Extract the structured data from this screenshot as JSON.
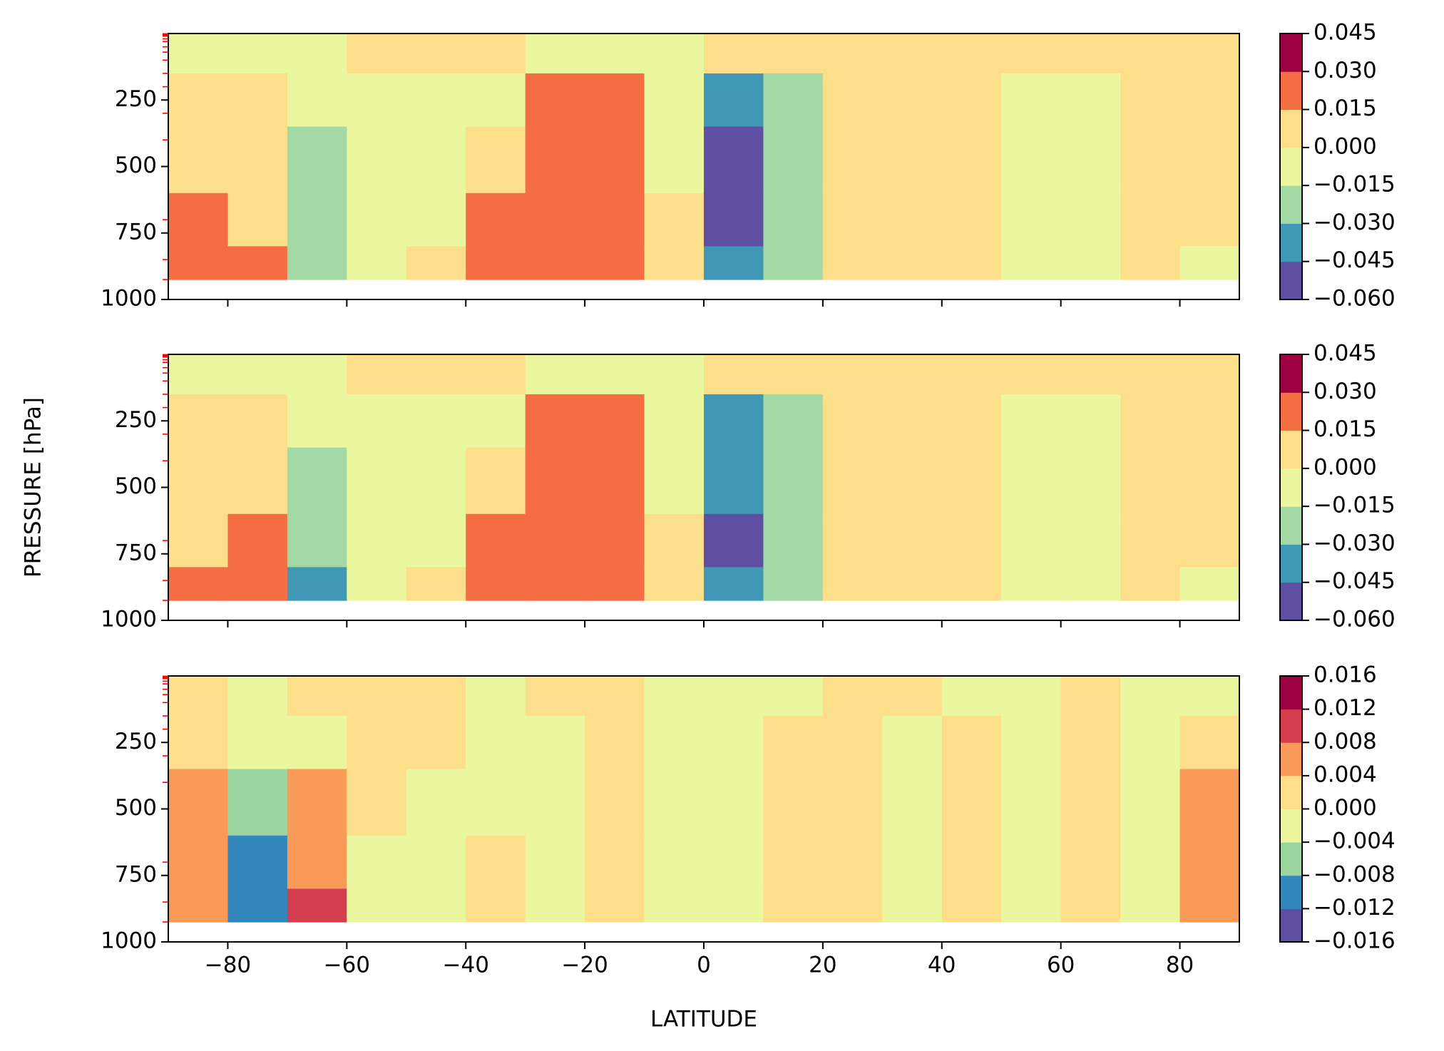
{
  "chart_data": [
    {
      "type": "contour",
      "xlim": [
        -90,
        90
      ],
      "ylim": [
        1000,
        0
      ],
      "xticks": [
        -80,
        -60,
        -40,
        -20,
        0,
        20,
        40,
        60,
        80
      ],
      "yticks": [
        250,
        500,
        750,
        1000
      ],
      "minor_yticks": [
        1,
        2,
        3,
        5,
        7,
        10,
        20,
        30,
        50,
        70,
        100,
        150,
        200,
        300,
        400,
        700,
        850,
        925
      ],
      "minor_tick_color": "red",
      "levels": [
        {
          "value": -0.06,
          "label": "−0.060"
        },
        {
          "value": -0.045,
          "label": "−0.045"
        },
        {
          "value": -0.03,
          "label": "−0.030"
        },
        {
          "value": -0.015,
          "label": "−0.015"
        },
        {
          "value": 0,
          "label": "0.000"
        },
        {
          "value": 0.015,
          "label": "0.015"
        },
        {
          "value": 0.03,
          "label": "0.030"
        },
        {
          "value": 0.045,
          "label": "0.045"
        }
      ],
      "colors": [
        "#5e4fa2",
        "#4198b6",
        "#a2d9a4",
        "#eaf79e",
        "#fddf8b",
        "#f46d43",
        "#9e0142"
      ],
      "x_edges": [
        -90,
        -80,
        -70,
        -60,
        -50,
        -40,
        -30,
        -20,
        -10,
        0,
        10,
        20,
        30,
        40,
        50,
        60,
        70,
        80,
        90
      ],
      "y_edges": [
        0,
        150,
        350,
        600,
        800,
        925
      ],
      "z": [
        [
          -0.0075,
          -0.0075,
          -0.0075,
          0.0075,
          0.0075,
          0.0075,
          -0.0075,
          -0.0075,
          -0.0075,
          0.0075,
          0.0075,
          0.0075,
          0.0075,
          0.0075,
          0.0075,
          0.0075,
          0.0075,
          0.0075
        ],
        [
          0.0075,
          0.0075,
          -0.0075,
          -0.0075,
          -0.0075,
          -0.0075,
          0.0225,
          0.0225,
          -0.0075,
          -0.0375,
          -0.0225,
          0.0075,
          0.0075,
          0.0075,
          -0.0075,
          -0.0075,
          0.0075,
          0.0075
        ],
        [
          0.0075,
          0.0075,
          -0.0225,
          -0.0075,
          -0.0075,
          0.0075,
          0.0225,
          0.0225,
          -0.0075,
          -0.0525,
          -0.0225,
          0.0075,
          0.0075,
          0.0075,
          -0.0075,
          -0.0075,
          0.0075,
          0.0075
        ],
        [
          0.0225,
          0.0075,
          -0.0225,
          -0.0075,
          -0.0075,
          0.0225,
          0.0225,
          0.0225,
          0.0075,
          -0.0525,
          -0.0225,
          0.0075,
          0.0075,
          0.0075,
          -0.0075,
          -0.0075,
          0.0075,
          0.0075
        ],
        [
          0.0225,
          0.0225,
          -0.0225,
          -0.0075,
          0.0075,
          0.0225,
          0.0225,
          0.0225,
          0.0075,
          -0.0375,
          -0.0225,
          0.0075,
          0.0075,
          0.0075,
          -0.0075,
          -0.0075,
          0.0075,
          -0.0075
        ]
      ]
    },
    {
      "type": "contour",
      "ylabel": "PRESSURE [hPa]",
      "xlim": [
        -90,
        90
      ],
      "ylim": [
        1000,
        0
      ],
      "xticks": [
        -80,
        -60,
        -40,
        -20,
        0,
        20,
        40,
        60,
        80
      ],
      "yticks": [
        250,
        500,
        750,
        1000
      ],
      "minor_yticks": [
        1,
        2,
        3,
        5,
        7,
        10,
        20,
        30,
        50,
        70,
        100,
        150,
        200,
        300,
        400,
        700,
        850,
        925
      ],
      "minor_tick_color": "red",
      "levels": [
        {
          "value": -0.06,
          "label": "−0.060"
        },
        {
          "value": -0.045,
          "label": "−0.045"
        },
        {
          "value": -0.03,
          "label": "−0.030"
        },
        {
          "value": -0.015,
          "label": "−0.015"
        },
        {
          "value": 0,
          "label": "0.000"
        },
        {
          "value": 0.015,
          "label": "0.015"
        },
        {
          "value": 0.03,
          "label": "0.030"
        },
        {
          "value": 0.045,
          "label": "0.045"
        }
      ],
      "colors": [
        "#5e4fa2",
        "#4198b6",
        "#a2d9a4",
        "#eaf79e",
        "#fddf8b",
        "#f46d43",
        "#9e0142"
      ],
      "x_edges": [
        -90,
        -80,
        -70,
        -60,
        -50,
        -40,
        -30,
        -20,
        -10,
        0,
        10,
        20,
        30,
        40,
        50,
        60,
        70,
        80,
        90
      ],
      "y_edges": [
        0,
        150,
        350,
        600,
        800,
        925
      ],
      "z": [
        [
          -0.0075,
          -0.0075,
          -0.0075,
          0.0075,
          0.0075,
          0.0075,
          -0.0075,
          -0.0075,
          -0.0075,
          0.0075,
          0.0075,
          0.0075,
          0.0075,
          0.0075,
          0.0075,
          0.0075,
          0.0075,
          0.0075
        ],
        [
          0.0075,
          0.0075,
          -0.0075,
          -0.0075,
          -0.0075,
          -0.0075,
          0.0225,
          0.0225,
          -0.0075,
          -0.0375,
          -0.0225,
          0.0075,
          0.0075,
          0.0075,
          -0.0075,
          -0.0075,
          0.0075,
          0.0075
        ],
        [
          0.0075,
          0.0075,
          -0.0225,
          -0.0075,
          -0.0075,
          0.0075,
          0.0225,
          0.0225,
          -0.0075,
          -0.0375,
          -0.0225,
          0.0075,
          0.0075,
          0.0075,
          -0.0075,
          -0.0075,
          0.0075,
          0.0075
        ],
        [
          0.0075,
          0.0225,
          -0.0225,
          -0.0075,
          -0.0075,
          0.0225,
          0.0225,
          0.0225,
          0.0075,
          -0.0525,
          -0.0225,
          0.0075,
          0.0075,
          0.0075,
          -0.0075,
          -0.0075,
          0.0075,
          0.0075
        ],
        [
          0.0225,
          0.0225,
          -0.0375,
          -0.0075,
          0.0075,
          0.0225,
          0.0225,
          0.0225,
          0.0075,
          -0.0375,
          -0.0225,
          0.0075,
          0.0075,
          0.0075,
          -0.0075,
          -0.0075,
          0.0075,
          -0.0075
        ]
      ]
    },
    {
      "type": "contour",
      "xlabel": "LATITUDE",
      "xlim": [
        -90,
        90
      ],
      "ylim": [
        1000,
        0
      ],
      "xticks": [
        {
          "value": -80,
          "label": "−80"
        },
        {
          "value": -60,
          "label": "−60"
        },
        {
          "value": -40,
          "label": "−40"
        },
        {
          "value": -20,
          "label": "−20"
        },
        0,
        20,
        40,
        60,
        80
      ],
      "yticks": [
        250,
        500,
        750,
        1000
      ],
      "minor_yticks": [
        1,
        2,
        3,
        5,
        7,
        10,
        20,
        30,
        50,
        70,
        100,
        150,
        200,
        300,
        400,
        700,
        850,
        925
      ],
      "minor_tick_color": "red",
      "levels": [
        {
          "value": -0.016,
          "label": "−0.016"
        },
        {
          "value": -0.012,
          "label": "−0.012"
        },
        {
          "value": -0.008,
          "label": "−0.008"
        },
        {
          "value": -0.004,
          "label": "−0.004"
        },
        {
          "value": 0,
          "label": "0.000"
        },
        {
          "value": 0.004,
          "label": "0.004"
        },
        {
          "value": 0.008,
          "label": "0.008"
        },
        {
          "value": 0.012,
          "label": "0.012"
        },
        {
          "value": 0.016,
          "label": "0.016"
        }
      ],
      "colors": [
        "#5e4fa2",
        "#3288bd",
        "#9dd5a0",
        "#eaf79e",
        "#fddf8b",
        "#f99a58",
        "#d53e4f",
        "#9e0142"
      ],
      "x_edges": [
        -90,
        -80,
        -70,
        -60,
        -50,
        -40,
        -30,
        -20,
        -10,
        0,
        10,
        20,
        30,
        40,
        50,
        60,
        70,
        80,
        90
      ],
      "y_edges": [
        0,
        150,
        350,
        600,
        800,
        925
      ],
      "z": [
        [
          0.002,
          -0.002,
          0.002,
          0.002,
          0.002,
          -0.002,
          0.002,
          0.002,
          -0.002,
          -0.002,
          -0.002,
          0.002,
          0.002,
          -0.002,
          -0.002,
          0.002,
          -0.002,
          -0.002
        ],
        [
          0.002,
          -0.002,
          -0.002,
          0.002,
          0.002,
          -0.002,
          -0.002,
          0.002,
          -0.002,
          -0.002,
          0.002,
          0.002,
          -0.002,
          0.002,
          -0.002,
          0.002,
          -0.002,
          0.002
        ],
        [
          0.006,
          -0.006,
          0.006,
          0.002,
          -0.002,
          -0.002,
          -0.002,
          0.002,
          -0.002,
          -0.002,
          0.002,
          0.002,
          -0.002,
          0.002,
          -0.002,
          0.002,
          -0.002,
          0.006
        ],
        [
          0.006,
          -0.01,
          0.006,
          -0.002,
          -0.002,
          0.002,
          -0.002,
          0.002,
          -0.002,
          -0.002,
          0.002,
          0.002,
          -0.002,
          0.002,
          -0.002,
          0.002,
          -0.002,
          0.006
        ],
        [
          0.006,
          -0.01,
          0.01,
          -0.002,
          -0.002,
          0.002,
          -0.002,
          0.002,
          -0.002,
          -0.002,
          0.002,
          0.002,
          -0.002,
          0.002,
          -0.002,
          0.002,
          -0.002,
          0.006
        ]
      ]
    }
  ]
}
